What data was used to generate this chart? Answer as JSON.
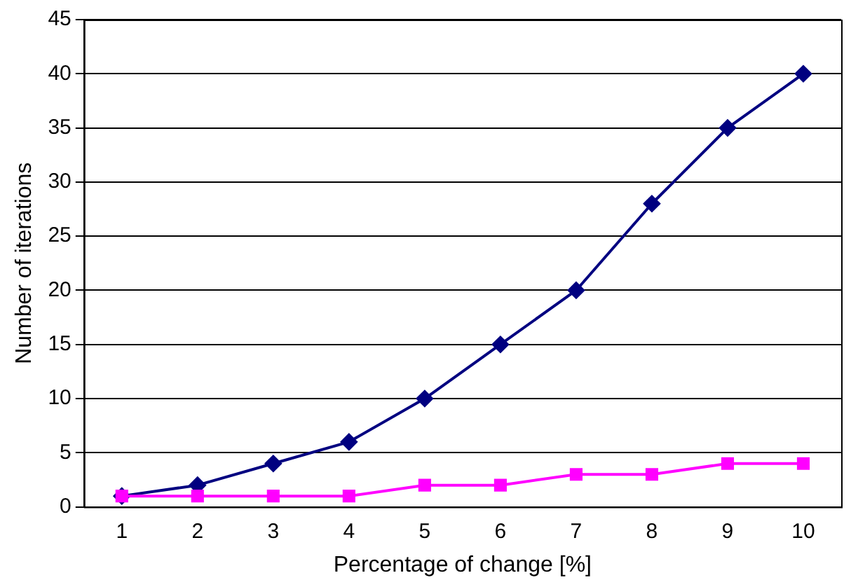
{
  "chart_data": {
    "type": "line",
    "xlabel": "Percentage of change [%]",
    "ylabel": "Number of iterations",
    "categories": [
      "1",
      "2",
      "3",
      "4",
      "5",
      "6",
      "7",
      "8",
      "9",
      "10"
    ],
    "series": [
      {
        "color": "#000080",
        "marker": "diamond",
        "values": [
          1,
          2,
          4,
          6,
          10,
          15,
          20,
          28,
          35,
          40
        ]
      },
      {
        "color": "#ff00ff",
        "marker": "square",
        "values": [
          1,
          1,
          1,
          1,
          2,
          2,
          3,
          3,
          4,
          4
        ]
      }
    ],
    "ylim": [
      0,
      45
    ],
    "yticks": [
      0,
      5,
      10,
      15,
      20,
      25,
      30,
      35,
      40,
      45
    ],
    "grid": "y",
    "legend": false,
    "line_style": "solid"
  }
}
